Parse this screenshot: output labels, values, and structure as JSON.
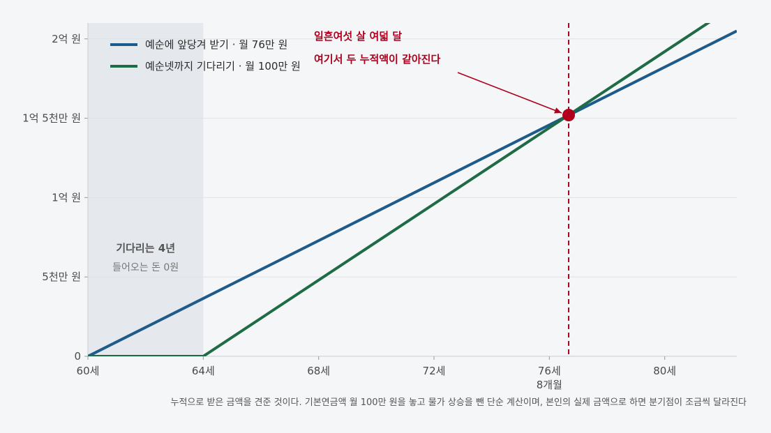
{
  "chart_data": {
    "type": "line",
    "x_unit": "age",
    "xlim": [
      60,
      82.5
    ],
    "ylim": [
      0,
      2.1
    ],
    "y_unit": "억 원",
    "x_ticks": [
      {
        "value": 60,
        "label": "60세"
      },
      {
        "value": 64,
        "label": "64세"
      },
      {
        "value": 68,
        "label": "68세"
      },
      {
        "value": 72,
        "label": "72세"
      },
      {
        "value": 76,
        "label": "76세"
      },
      {
        "value": 80,
        "label": "80세"
      }
    ],
    "x_sub_label": {
      "value": 76,
      "label": "8개월"
    },
    "y_ticks": [
      {
        "value": 0,
        "label": "0"
      },
      {
        "value": 0.5,
        "label": "5천만 원"
      },
      {
        "value": 1,
        "label": "1억 원"
      },
      {
        "value": 1.5,
        "label": "1억 5천만 원"
      },
      {
        "value": 2,
        "label": "2억 원"
      }
    ],
    "grid": "horizontal",
    "legend_position": "top-left",
    "series": [
      {
        "name": "예순에 앞당겨 받기 · 월 76만 원",
        "color": "#1f5b8a",
        "x": [
          60,
          82.5
        ],
        "y": [
          0,
          2.05
        ]
      },
      {
        "name": "예순넷까지 기다리기 · 월 100만 원",
        "color": "#1e6b45",
        "x": [
          60,
          64,
          82.5
        ],
        "y": [
          0,
          0,
          2.22
        ]
      }
    ],
    "shaded_region": {
      "x": [
        60,
        64
      ],
      "title": "기다리는 4년",
      "subtitle": "들어오는 돈 0원"
    },
    "crossover": {
      "x": 76.67,
      "y": 1.52,
      "color": "#b0001e"
    },
    "annotation": {
      "line1": "일흔여섯 살 여덟 달",
      "line2": "여기서 두 누적액이 같아진다",
      "color": "#b0001e"
    },
    "footnote": "누적으로 받은 금액을 견준 것이다. 기본연금액 월 100만 원을 놓고 물가 상승을 뺀 단순 계산이며, 본인의 실제 금액으로 하면 분기점이 조금씩 달라진다"
  }
}
